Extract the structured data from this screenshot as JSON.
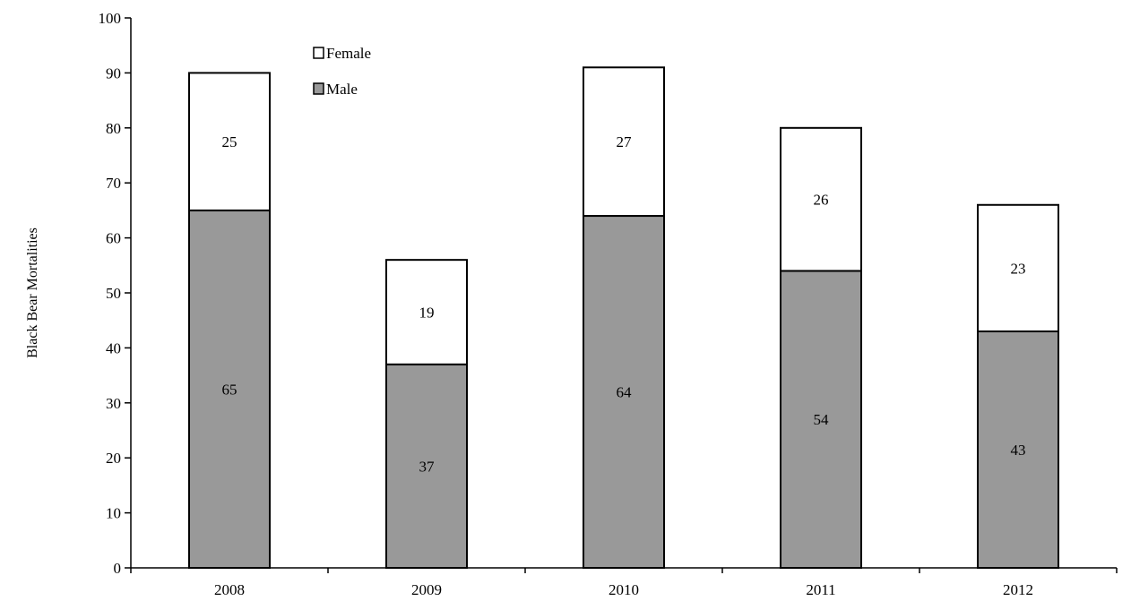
{
  "chart_data": {
    "type": "bar",
    "stacked": true,
    "categories": [
      "2008",
      "2009",
      "2010",
      "2011",
      "2012"
    ],
    "series": [
      {
        "name": "Male",
        "values": [
          65,
          37,
          64,
          54,
          43
        ],
        "color": "#999999"
      },
      {
        "name": "Female",
        "values": [
          25,
          19,
          27,
          26,
          23
        ],
        "color": "#ffffff"
      }
    ],
    "title": "",
    "xlabel": "",
    "ylabel": "Black Bear Mortalities",
    "ylim": [
      0,
      100
    ],
    "yticks": [
      0,
      10,
      20,
      30,
      40,
      50,
      60,
      70,
      80,
      90,
      100
    ],
    "grid": false,
    "legend": {
      "placement": "top-left",
      "order": [
        "Female",
        "Male"
      ]
    },
    "data_labels": true
  }
}
